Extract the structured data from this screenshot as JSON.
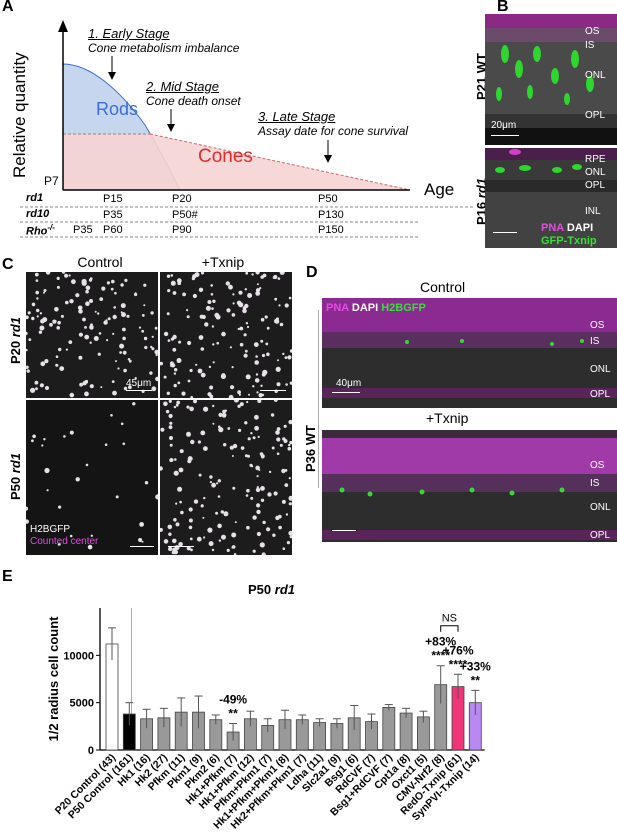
{
  "panels": {
    "A": "A",
    "B": "B",
    "C": "C",
    "D": "D",
    "E": "E"
  },
  "panelA": {
    "ylabel": "Relative quantity",
    "stage1_title": "1. Early Stage",
    "stage1_sub": "Cone metabolism imbalance",
    "stage2_title": "2. Mid Stage",
    "stage2_sub": "Cone death onset",
    "stage3_title": "3. Late Stage",
    "stage3_sub": "Assay date for cone survival",
    "rods": "Rods",
    "cones": "Cones",
    "p7": "P7",
    "age": "Age",
    "colors": {
      "rods_fill": "#c5d6ee",
      "rods_text": "#3c6fd0",
      "cones_fill": "#f6d4d4",
      "cones_text": "#e02c2c"
    },
    "timeline": [
      {
        "name": "rd1",
        "suffix": "",
        "cells": [
          "P15",
          "P20",
          "P50"
        ]
      },
      {
        "name": "rd10",
        "suffix": "",
        "cells": [
          "P35",
          "P50#",
          "P130"
        ]
      },
      {
        "name": "Rho",
        "suffix": "-/-",
        "cells": [
          "P35",
          "P60",
          "P90",
          "P150"
        ]
      }
    ]
  },
  "panelB": {
    "top_label_p": "P21 WT",
    "top_layers": [
      "OS",
      "IS",
      "ONL",
      "OPL"
    ],
    "top_scale": "20μm",
    "bottom_label_p": "P16",
    "bottom_label_i": "rd1",
    "bottom_layers": [
      "RPE",
      "ONL",
      "OPL",
      "INL"
    ],
    "legend_pna": "PNA",
    "legend_dapi": "DAPI",
    "legend_gfp": "GFP-Txnip"
  },
  "panelC": {
    "col1": "Control",
    "col2": "+Txnip",
    "row1_p": "P20",
    "row1_i": "rd1",
    "row2_p": "P50",
    "row2_i": "rd1",
    "scale": "45μm",
    "legend1": "H2BGFP",
    "legend2": "Counted center"
  },
  "panelD": {
    "header_pna": "PNA",
    "header_dapi": "DAPI",
    "header_h2b": "H2BGFP",
    "control": "Control",
    "txnip": "+Txnip",
    "rowlabel": "P36 WT",
    "layers": [
      "OS",
      "IS",
      "ONL",
      "OPL"
    ],
    "scale": "40μm"
  },
  "panelE": {
    "title_p": "P50",
    "title_i": "rd1"
  },
  "chart_data": {
    "type": "bar",
    "ylabel": "1/2 radius cell count",
    "ylim": [
      0,
      15000
    ],
    "yticks": [
      "0",
      "5000",
      "10000"
    ],
    "categories": [
      "P20 Control (43)",
      "P50 Control (161)",
      "Hk1 (16)",
      "Hk2 (27)",
      "Pfkm (11)",
      "Pkm1 (9)",
      "Pkm2 (6)",
      "Hk1+Pfkm (7)",
      "Hk1+Pfkm (12)",
      "Pfkm+Pkm1 (7)",
      "Hk1+Pfkm+Pkm1 (8)",
      "Hk2+Pfkm+Pkm1 (7)",
      "Ldha (11)",
      "Slc2a1 (9)",
      "Bsg1 (6)",
      "RdCVF (7)",
      "Bsg1+RdCVF (7)",
      "Cpt1a (8)",
      "Oxct1 (5)",
      "CMV-Nrf2 (8)",
      "RedO-Txnip (61)",
      "SynPVI-Txnip (14)"
    ],
    "values": [
      11200,
      3800,
      3300,
      3400,
      4000,
      4000,
      3200,
      1900,
      3300,
      2600,
      3200,
      3200,
      2900,
      2800,
      3400,
      3000,
      4500,
      3900,
      3500,
      6900,
      6700,
      5000
    ],
    "errors": [
      1700,
      1200,
      1000,
      1000,
      1500,
      1700,
      500,
      900,
      800,
      700,
      1000,
      500,
      400,
      500,
      1300,
      800,
      300,
      500,
      600,
      2000,
      1300,
      1300
    ],
    "colors": [
      "#ffffff",
      "#000000",
      "#999999",
      "#999999",
      "#999999",
      "#999999",
      "#999999",
      "#999999",
      "#999999",
      "#999999",
      "#999999",
      "#999999",
      "#999999",
      "#999999",
      "#999999",
      "#999999",
      "#999999",
      "#999999",
      "#999999",
      "#999999",
      "#ef3478",
      "#b889f0"
    ],
    "annotations": [
      {
        "bar": 7,
        "lines": [
          "-49%",
          "**"
        ]
      },
      {
        "bar": 19,
        "lines": [
          "+83%",
          "****"
        ]
      },
      {
        "bar": 20,
        "lines": [
          "+76%",
          "****"
        ]
      },
      {
        "bar": 21,
        "lines": [
          "+33%",
          "**"
        ]
      }
    ],
    "ns_label": "NS"
  }
}
